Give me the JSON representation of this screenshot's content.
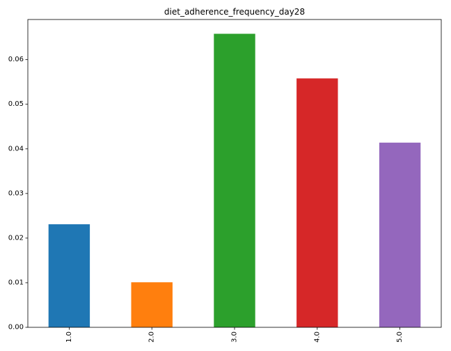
{
  "chart_data": {
    "type": "bar",
    "title": "diet_adherence_frequency_day28",
    "xlabel": "",
    "ylabel": "",
    "categories": [
      "1.0",
      "2.0",
      "3.0",
      "4.0",
      "5.0"
    ],
    "values": [
      0.0231,
      0.0101,
      0.0658,
      0.0558,
      0.0414
    ],
    "colors": [
      "#1f77b4",
      "#ff7f0e",
      "#2ca02c",
      "#d62728",
      "#9467bd"
    ],
    "ylim": [
      0,
      0.069
    ],
    "yticks": [
      0.0,
      0.01,
      0.02,
      0.03,
      0.04,
      0.05,
      0.06
    ],
    "ytick_labels": [
      "0.00",
      "0.01",
      "0.02",
      "0.03",
      "0.04",
      "0.05",
      "0.06"
    ],
    "xtick_rotation": "vertical",
    "grid": false,
    "legend": "none"
  }
}
